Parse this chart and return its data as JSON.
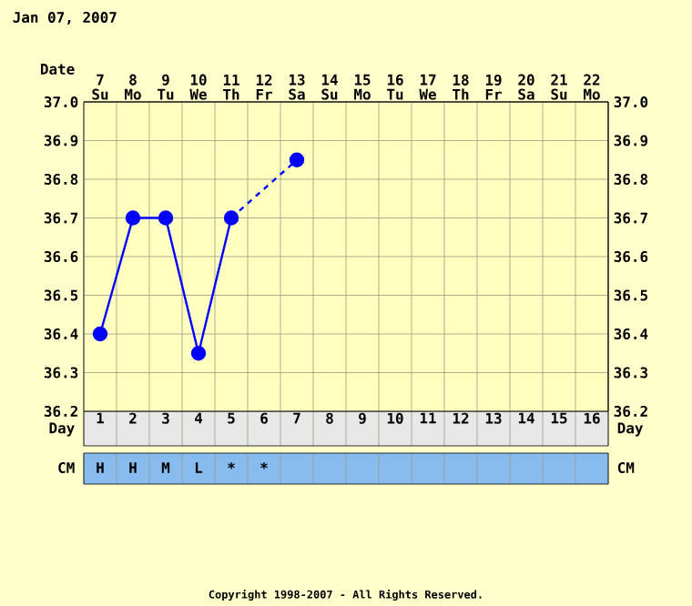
{
  "chart_data": {
    "type": "line",
    "title": "Jan 07, 2007",
    "xlabel": "Day",
    "x2label": "Date",
    "categories": [
      "1",
      "2",
      "3",
      "4",
      "5",
      "6",
      "7",
      "8",
      "9",
      "10",
      "11",
      "12",
      "13",
      "14",
      "15",
      "16"
    ],
    "series": [
      {
        "color": "#0000ff",
        "values": [
          36.4,
          36.7,
          36.7,
          36.35,
          36.7,
          null,
          36.85,
          null,
          null,
          null,
          null,
          null,
          null,
          null,
          null,
          null
        ]
      }
    ],
    "ylim": [
      36.2,
      37.0
    ],
    "yticks": [
      36.2,
      36.3,
      36.4,
      36.5,
      36.6,
      36.7,
      36.8,
      36.9,
      {
        "value": 37.0,
        "label": "37.0"
      }
    ],
    "y2lim": [
      36.2,
      37.0
    ],
    "y2ticks": [
      36.2,
      36.3,
      36.4,
      36.5,
      36.6,
      36.7,
      36.8,
      36.9,
      {
        "value": 37.0,
        "label": "37.0"
      }
    ],
    "x2lim": [
      6.5,
      22.5
    ],
    "x2ticks": [
      {
        "value": 7,
        "label": "7 Su"
      },
      {
        "value": 8,
        "label": "8 Mo"
      },
      {
        "value": 9,
        "label": "9 Tu"
      },
      {
        "value": 10,
        "label": "10 We"
      },
      {
        "value": 11,
        "label": "11 Th"
      },
      {
        "value": 12,
        "label": "12 Fr"
      },
      {
        "value": 13,
        "label": "13 Sa"
      },
      {
        "value": 14,
        "label": "14 Su"
      },
      {
        "value": 15,
        "label": "15 Mo"
      },
      {
        "value": 16,
        "label": "16 Tu"
      },
      {
        "value": 17,
        "label": "17 We"
      },
      {
        "value": 18,
        "label": "18 Th"
      },
      {
        "value": 19,
        "label": "19 Fr"
      },
      {
        "value": 20,
        "label": "20 Sa"
      },
      {
        "value": 21,
        "label": "21 Su"
      },
      {
        "value": 22,
        "label": "22 Mo"
      }
    ],
    "annotations": [
      "CM",
      "Copyright 1998-2007 - All Rights Reserved.",
      "H",
      "H",
      "M",
      "L",
      "*",
      "*"
    ],
    "grid": true,
    "marker": "circle",
    "line_style": "solid"
  }
}
